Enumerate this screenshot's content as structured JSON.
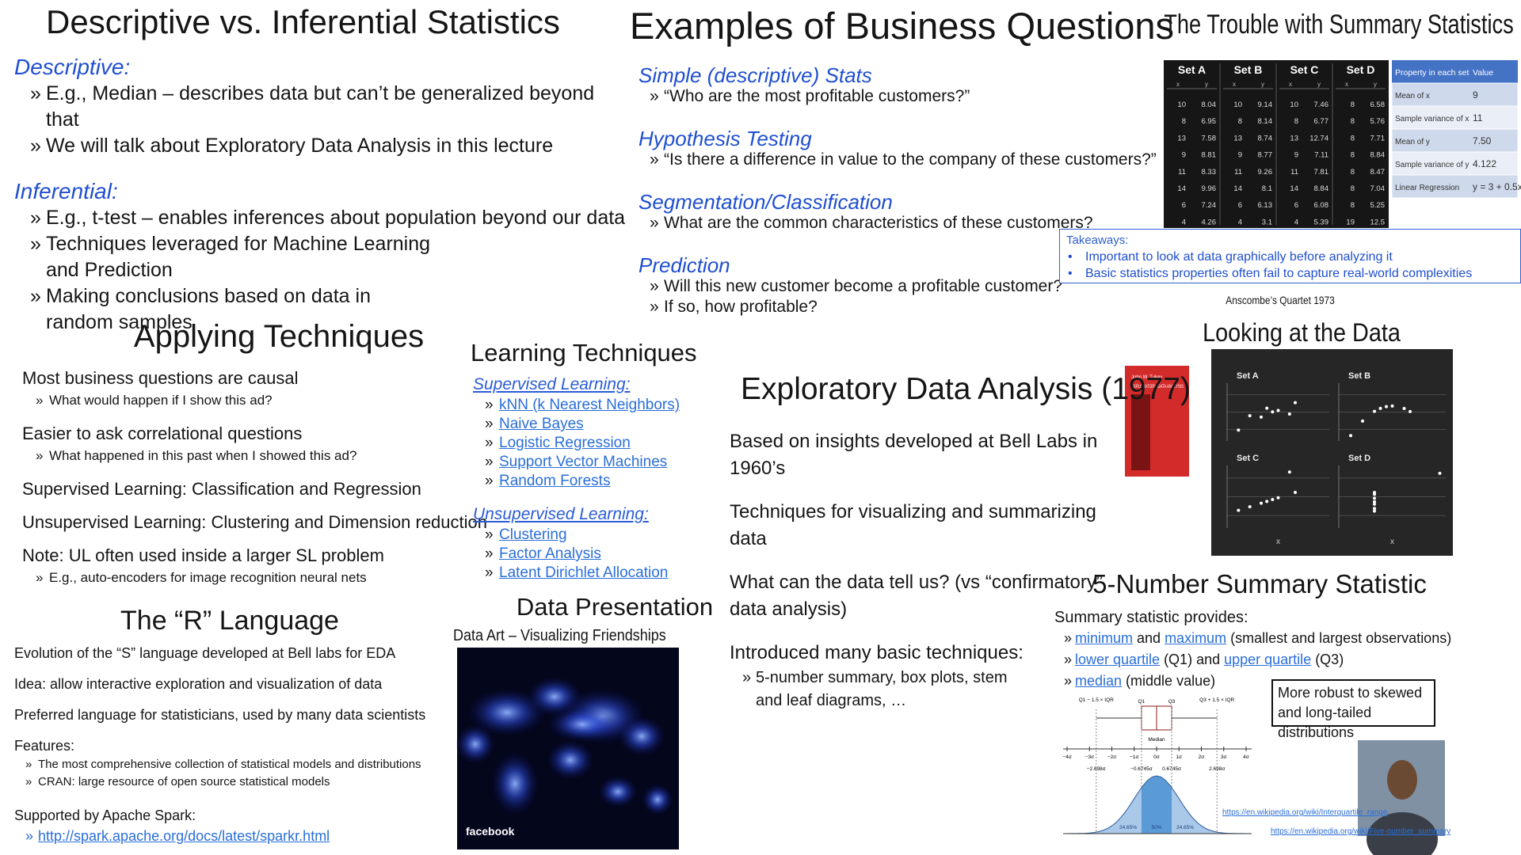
{
  "slides": [
    {
      "title": "Descriptive vs. Inferential Statistics",
      "blocks": [
        {
          "heading": "Descriptive:",
          "items": [
            "E.g., Median – describes data but can’t be generalized beyond that",
            "We will talk about Exploratory Data Analysis in this lecture"
          ]
        },
        {
          "heading": "Inferential:",
          "items": [
            "E.g., t-test – enables inferences about population beyond our data",
            "Techniques leveraged for Machine Learning and Prediction",
            "Making conclusions based on data in random samples"
          ]
        }
      ]
    },
    {
      "title": "Examples of Business Questions",
      "blocks": [
        {
          "heading": "Simple (descriptive) Stats",
          "items": [
            "“Who are the most profitable customers?”"
          ]
        },
        {
          "heading": "Hypothesis Testing",
          "items": [
            "“Is there a difference in value to the company of these customers?”"
          ]
        },
        {
          "heading": "Segmentation/Classification",
          "items": [
            "What are the common characteristics of these customers?"
          ]
        },
        {
          "heading": "Prediction",
          "items": [
            "Will this new customer become a profitable customer?",
            "If so, how profitable?"
          ]
        }
      ]
    },
    {
      "title": "The Trouble with Summary Statistics",
      "anscombe": {
        "sets": [
          "Set A",
          "Set B",
          "Set C",
          "Set D"
        ],
        "columns": [
          "x",
          "y"
        ],
        "rows": [
          [
            10,
            8.04,
            10,
            9.14,
            10,
            7.46,
            8,
            6.58
          ],
          [
            8,
            6.95,
            8,
            8.14,
            8,
            6.77,
            8,
            5.76
          ],
          [
            13,
            7.58,
            13,
            8.74,
            13,
            12.74,
            8,
            7.71
          ],
          [
            9,
            8.81,
            9,
            8.77,
            9,
            7.11,
            8,
            8.84
          ],
          [
            11,
            8.33,
            11,
            9.26,
            11,
            7.81,
            8,
            8.47
          ],
          [
            14,
            9.96,
            14,
            8.1,
            14,
            8.84,
            8,
            7.04
          ],
          [
            6,
            7.24,
            6,
            6.13,
            6,
            6.08,
            8,
            5.25
          ],
          [
            4,
            4.26,
            4,
            3.1,
            4,
            5.39,
            19,
            12.5
          ]
        ]
      },
      "properties": {
        "header": [
          "Property in each set",
          "Value"
        ],
        "rows": [
          [
            "Mean of x",
            "9"
          ],
          [
            "Sample variance of x",
            "11"
          ],
          [
            "Mean of y",
            "7.50"
          ],
          [
            "Sample variance of y",
            "4.122"
          ],
          [
            "Linear Regression",
            "y = 3 + 0.5x"
          ]
        ]
      },
      "takeaways": {
        "heading": "Takeaways:",
        "items": [
          "Important to look at data graphically before analyzing it",
          "Basic statistics properties often fail to capture real-world complexities"
        ]
      },
      "caption": "Anscombe’s Quartet 1973"
    },
    {
      "title": "Applying Techniques",
      "blocks": [
        {
          "text": "Most business questions are causal",
          "items": [
            "What would happen if I show this ad?"
          ]
        },
        {
          "text": "Easier to ask correlational questions",
          "items": [
            "What happened in this past when I showed this ad?"
          ]
        },
        {
          "text": "Supervised Learning: Classification and Regression"
        },
        {
          "text": "Unsupervised Learning: Clustering and Dimension reduction"
        },
        {
          "text": "Note: UL often used inside a larger SL problem",
          "items": [
            "E.g., auto-encoders for image recognition neural nets"
          ]
        }
      ]
    },
    {
      "title": "Learning Techniques",
      "blocks": [
        {
          "heading": "Supervised Learning:",
          "items": [
            "kNN (k Nearest Neighbors)",
            "Naive Bayes",
            "Logistic Regression",
            "Support Vector Machines",
            "Random Forests"
          ]
        },
        {
          "heading": "Unsupervised Learning:",
          "items": [
            "Clustering",
            "Factor Analysis",
            "Latent Dirichlet Allocation"
          ]
        }
      ]
    },
    {
      "title": "Exploratory Data Analysis (1977)",
      "book": {
        "author": "John W. Tukey",
        "title": "EXPLORATORY DATA ANALYSIS"
      },
      "blocks": [
        {
          "text": "Based on insights developed at Bell Labs in 1960’s"
        },
        {
          "text": "Techniques for visualizing and summarizing data"
        },
        {
          "text": "What can the data tell us? (vs “confirmatory” data analysis)"
        },
        {
          "text": "Introduced many basic techniques:",
          "items": [
            "5-number summary, box plots, stem and leaf diagrams, …"
          ]
        }
      ]
    },
    {
      "title": "Looking at the Data",
      "plots": [
        "Set A",
        "Set B",
        "Set C",
        "Set D"
      ],
      "x_label": "x"
    },
    {
      "title": "The “R” Language",
      "blocks": [
        {
          "text": "Evolution of the “S” language developed at Bell labs for EDA"
        },
        {
          "text": "Idea: allow interactive exploration and visualization of data"
        },
        {
          "text": "Preferred language for statisticians, used by many data scientists"
        },
        {
          "text": "Features:",
          "items": [
            "The most comprehensive collection of statistical models and distributions",
            "CRAN: large resource of open source statistical models"
          ]
        },
        {
          "text": "Supported by Apache Spark:",
          "items": [
            "http://spark.apache.org/docs/latest/sparkr.html"
          ]
        }
      ]
    },
    {
      "title": "Data Presentation",
      "subtitle": "Data Art – Visualizing Friendships",
      "image_text": "facebook"
    },
    {
      "title": "5-Number Summary Statistic",
      "blocks": [
        {
          "text": "Summary statistic provides:",
          "items": [
            [
              {
                "link": "minimum"
              },
              {
                "text": " and "
              },
              {
                "link": "maximum"
              },
              {
                "text": " (smallest and largest observations)"
              }
            ],
            [
              {
                "link": "lower quartile"
              },
              {
                "text": " (Q1) and "
              },
              {
                "link": "upper quartile"
              },
              {
                "text": " (Q3)"
              }
            ],
            [
              {
                "link": "median"
              },
              {
                "text": " (middle value)"
              }
            ]
          ]
        }
      ],
      "note": "More robust to skewed and long-tailed distributions",
      "diagram": {
        "fences": [
          "Q1 − 1.5 × IQR",
          "Q3 + 1.5 × IQR"
        ],
        "quartiles": [
          "Q1",
          "Q3"
        ],
        "median": "Median",
        "sigma_ticks": [
          "−4σ",
          "−3σ",
          "−2σ",
          "−1σ",
          "0σ",
          "1σ",
          "2σ",
          "3σ",
          "4σ"
        ],
        "bounds": [
          "−2.698σ",
          "−0.6745σ",
          "0.6745σ",
          "2.698σ"
        ],
        "shares": [
          "24.65%",
          "50%",
          "24.65%"
        ]
      },
      "links": [
        "https://en.wikipedia.org/wiki/Interquartile_range",
        "https://en.wikipedia.org/wiki/Five-number_summary"
      ]
    }
  ]
}
